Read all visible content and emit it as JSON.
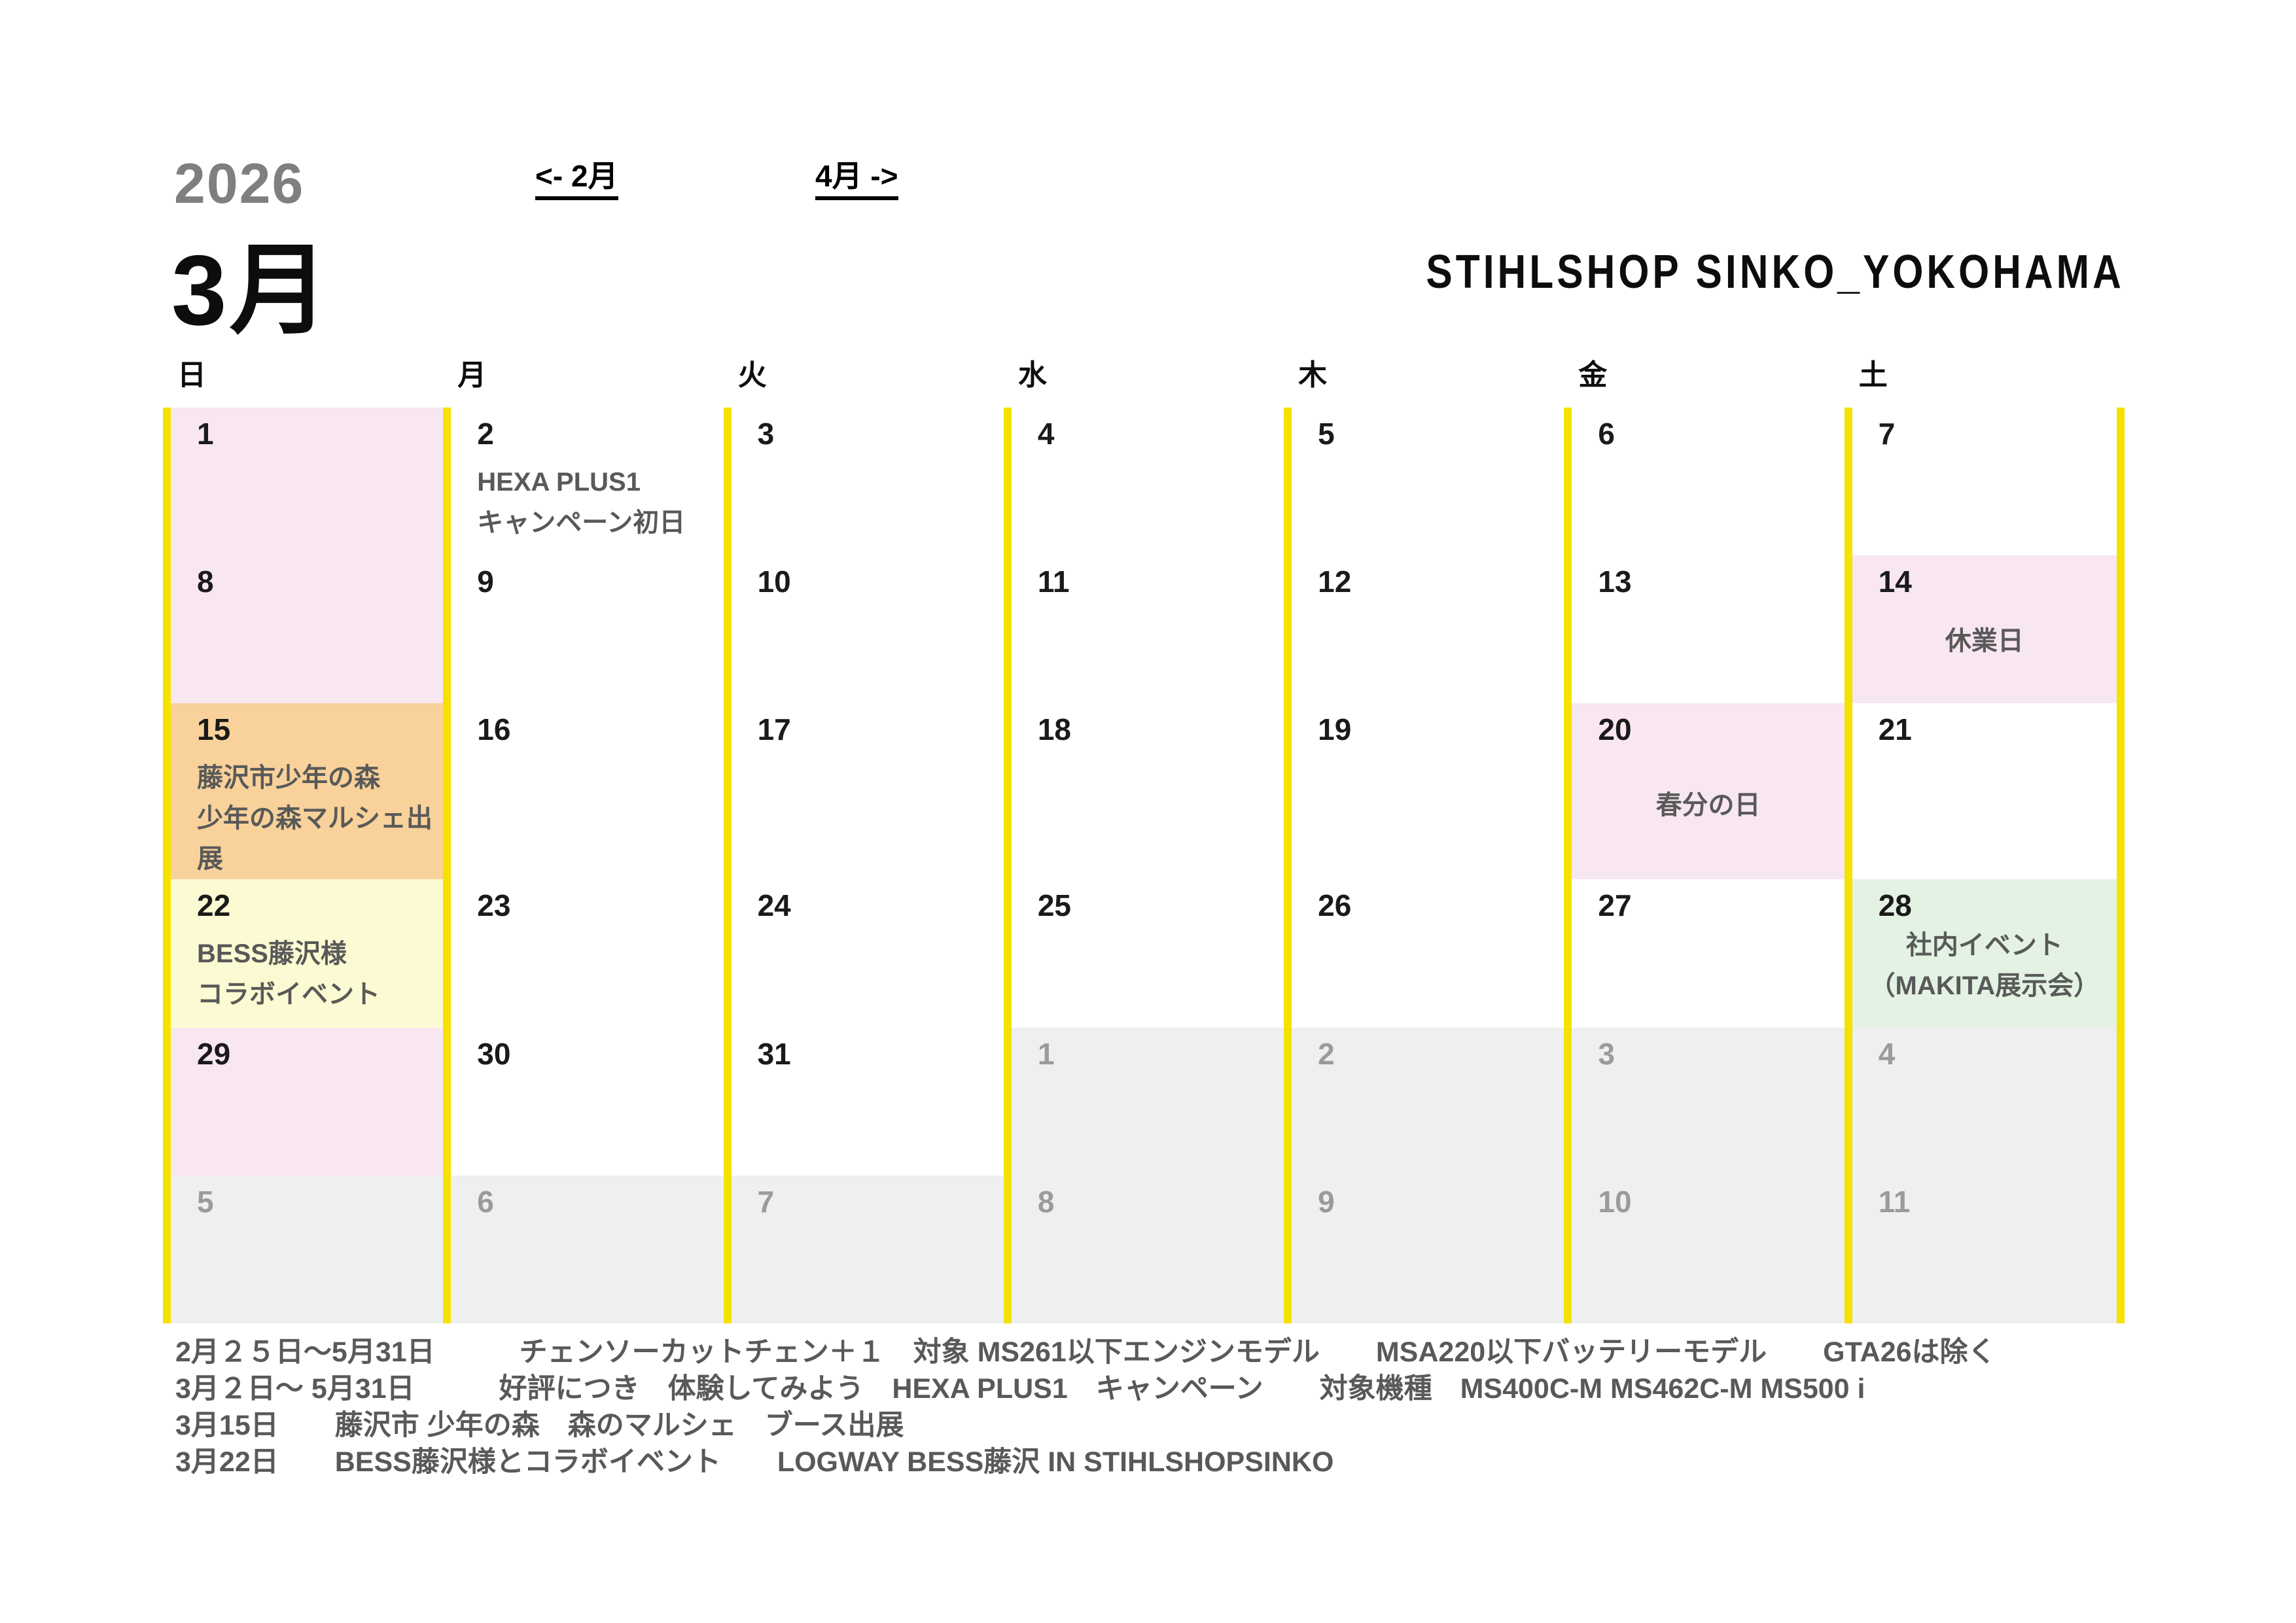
{
  "header": {
    "year": "2026",
    "month_title": "3月",
    "prev_link": "<- 2月",
    "next_link": "4月 ->",
    "shop_name": "STIHLSHOP SINKO_YOKOHAMA"
  },
  "weekdays": [
    "日",
    "月",
    "火",
    "水",
    "木",
    "金",
    "土"
  ],
  "weeks": [
    [
      {
        "date": "1",
        "bg": "pink"
      },
      {
        "date": "2",
        "events": [
          "HEXA PLUS1",
          "キャンペーン初日"
        ],
        "event_style": "left"
      },
      {
        "date": "3"
      },
      {
        "date": "4"
      },
      {
        "date": "5"
      },
      {
        "date": "6"
      },
      {
        "date": "7"
      }
    ],
    [
      {
        "date": "8",
        "bg": "pink"
      },
      {
        "date": "9"
      },
      {
        "date": "10"
      },
      {
        "date": "11"
      },
      {
        "date": "12"
      },
      {
        "date": "13"
      },
      {
        "date": "14",
        "bg": "pink",
        "events": [
          "休業日"
        ],
        "event_style": "center"
      }
    ],
    [
      {
        "date": "15",
        "bg": "orange",
        "events": [
          "藤沢市少年の森",
          "少年の森マルシェ出展"
        ],
        "event_style": "left"
      },
      {
        "date": "16"
      },
      {
        "date": "17"
      },
      {
        "date": "18"
      },
      {
        "date": "19"
      },
      {
        "date": "20",
        "bg": "pink",
        "events": [
          "春分の日"
        ],
        "event_style": "center"
      },
      {
        "date": "21"
      }
    ],
    [
      {
        "date": "22",
        "bg": "lightyellow",
        "events": [
          "BESS藤沢様",
          "コラボイベント"
        ],
        "event_style": "left"
      },
      {
        "date": "23"
      },
      {
        "date": "24"
      },
      {
        "date": "25"
      },
      {
        "date": "26"
      },
      {
        "date": "27"
      },
      {
        "date": "28",
        "bg": "green",
        "events": [
          "社内イベント",
          "（MAKITA展示会）"
        ],
        "event_style": "center"
      }
    ],
    [
      {
        "date": "29",
        "bg": "pink"
      },
      {
        "date": "30"
      },
      {
        "date": "31"
      },
      {
        "date": "1",
        "other_month": true
      },
      {
        "date": "2",
        "other_month": true
      },
      {
        "date": "3",
        "other_month": true
      },
      {
        "date": "4",
        "other_month": true
      }
    ],
    [
      {
        "date": "5",
        "other_month": true
      },
      {
        "date": "6",
        "other_month": true
      },
      {
        "date": "7",
        "other_month": true
      },
      {
        "date": "8",
        "other_month": true
      },
      {
        "date": "9",
        "other_month": true
      },
      {
        "date": "10",
        "other_month": true
      },
      {
        "date": "11",
        "other_month": true
      }
    ]
  ],
  "footer": {
    "lines": [
      "2月２５日～5月31日　　　チェンソーカットチェン＋１　対象 MS261以下エンジンモデル　　MSA220以下バッテリーモデル　　GTA26は除く",
      "3月２日～ 5月31日　　　好評につき　体験してみよう　HEXA PLUS1　キャンペーン　　対象機種　MS400C-M MS462C-M MS500 i",
      "3月15日　　藤沢市 少年の森　森のマルシェ　ブース出展",
      "3月22日　　BESS藤沢様とコラボイベント　　LOGWAY BESS藤沢 IN STIHLSHOPSINKO"
    ]
  },
  "colors": {
    "accent_yellow": "#F5E200",
    "holiday_pink": "#F8E6F1",
    "event_orange": "#F8D29A",
    "event_light_yellow": "#FCFAD2",
    "event_green": "#E3F2E2",
    "next_month_gray": "#EFEFEF",
    "event_text_gray": "#595959",
    "next_month_text_gray": "#9B9B9B"
  }
}
